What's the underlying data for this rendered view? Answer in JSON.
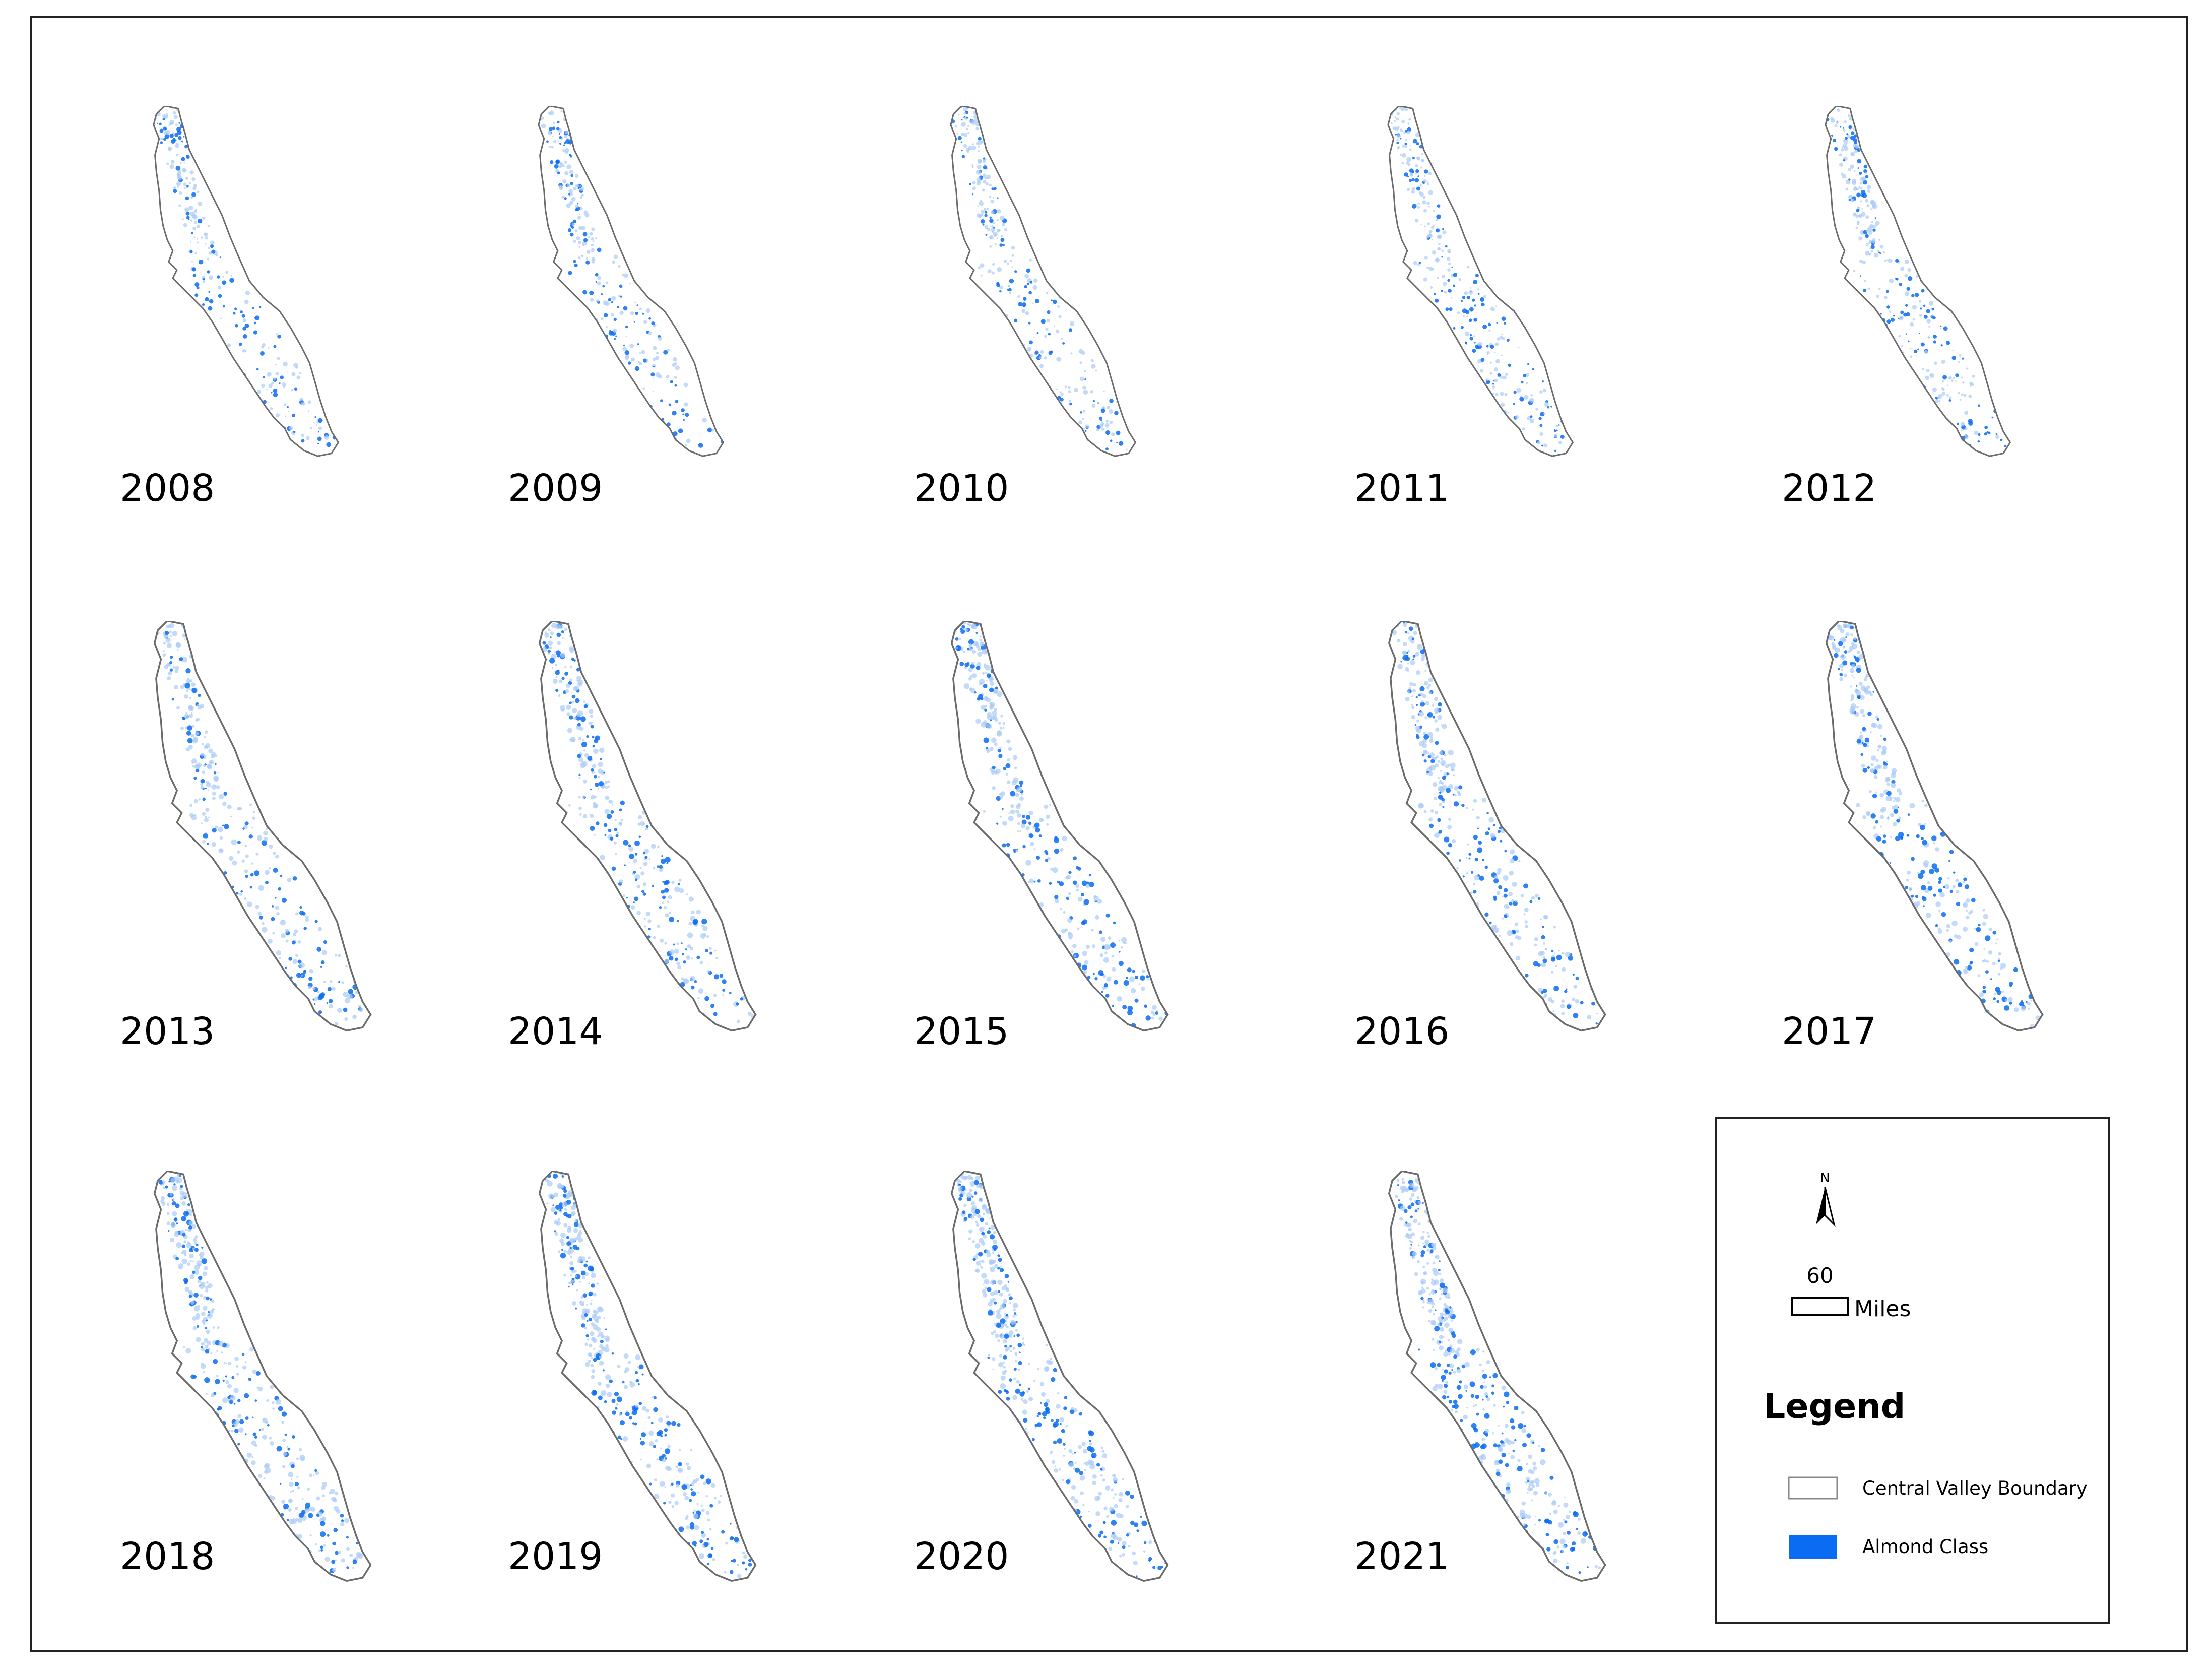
{
  "maps": [
    "2008",
    "2009",
    "2010",
    "2011",
    "2012",
    "2013",
    "2014",
    "2015",
    "2016",
    "2017",
    "2018",
    "2019",
    "2020",
    "2021"
  ],
  "north_arrow": {
    "label": "N"
  },
  "scale_bar": {
    "value": 60,
    "unit": "Miles"
  },
  "legend": {
    "title": "Legend",
    "items": [
      {
        "label": "Central Valley Boundary"
      },
      {
        "label": "Almond Class"
      }
    ]
  }
}
